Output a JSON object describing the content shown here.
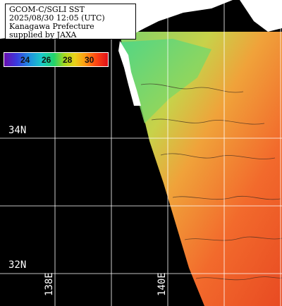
{
  "title_lines": [
    "GCOM-C/SGLI SST",
    "2025/08/30 12:05 (UTC)",
    "Kanagawa Prefecture",
    "supplied by JAXA"
  ],
  "color_scale": {
    "ticks": [
      "24",
      "26",
      "28",
      "30"
    ],
    "colors": [
      "#6a0dad",
      "#3a3adf",
      "#1f8de0",
      "#19c8c8",
      "#22d46a",
      "#a6d81e",
      "#e8d11a",
      "#ff9a12",
      "#ff4a12",
      "#e0101a"
    ]
  },
  "latitude_labels": [
    "34N",
    "32N"
  ],
  "longitude_labels": [
    "138E",
    "140E"
  ],
  "colors": {
    "land": "#ffffff",
    "cloud_mask": "#000000",
    "grid": "#ffffff"
  }
}
